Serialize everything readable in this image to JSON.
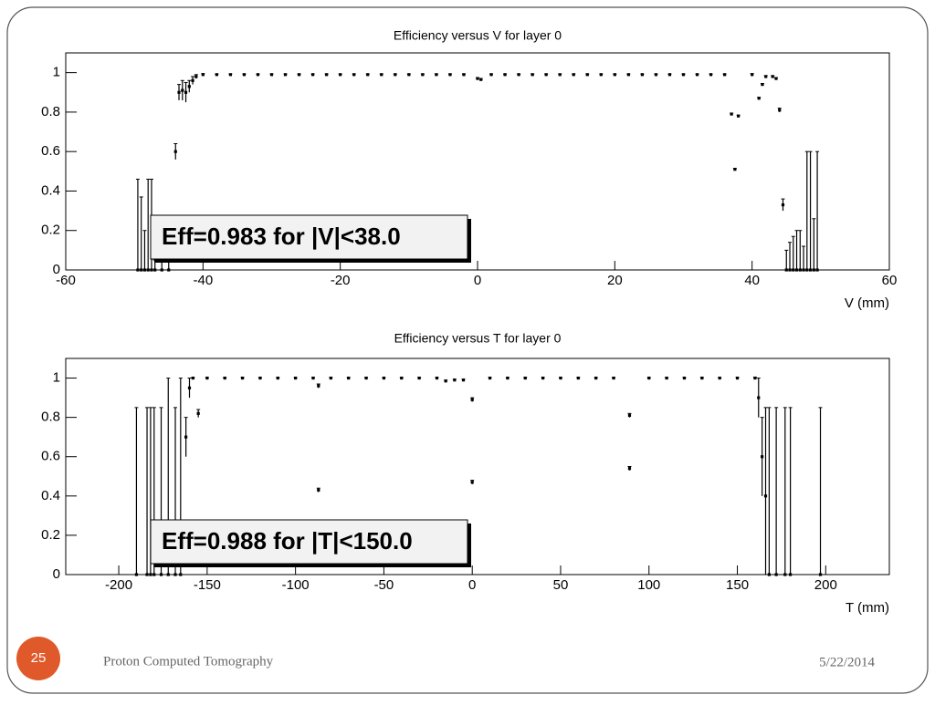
{
  "slide": {
    "page_number": "25",
    "footer": "Proton Computed Tomography",
    "date": "5/22/2014"
  },
  "chart_data": [
    {
      "type": "scatter",
      "title": "Efficiency versus V for layer 0",
      "x_label": "V (mm)",
      "annotation": "Eff=0.983 for |V|<38.0",
      "xlim": [
        -60,
        60
      ],
      "ylim": [
        0,
        1.1
      ],
      "xticks": [
        -60,
        -40,
        -20,
        0,
        20,
        40,
        60
      ],
      "yticks": [
        0,
        0.2,
        0.4,
        0.6,
        0.8,
        1
      ],
      "color": "#000000",
      "x": [
        -49.5,
        -49,
        -48.5,
        -48,
        -47.5,
        -47,
        -46,
        -45,
        -44,
        -43.5,
        -43,
        -42.5,
        -42,
        -41.5,
        -41,
        -40,
        -38,
        -36,
        -34,
        -32,
        -30,
        -28,
        -26,
        -24,
        -22,
        -20,
        -18,
        -16,
        -14,
        -12,
        -10,
        -8,
        -6,
        -4,
        -2,
        0,
        0.5,
        2,
        4,
        6,
        8,
        10,
        12,
        14,
        16,
        18,
        20,
        22,
        24,
        26,
        28,
        30,
        32,
        34,
        36,
        37,
        37.5,
        38,
        40,
        41,
        41.5,
        42,
        43,
        43.5,
        44,
        44.5,
        45,
        45.5,
        46,
        46.5,
        47,
        47.5,
        48,
        48.5,
        49,
        49.5
      ],
      "values": [
        0,
        0,
        0,
        0,
        0,
        0,
        0,
        0,
        0.6,
        0.9,
        0.91,
        0.9,
        0.93,
        0.96,
        0.98,
        0.99,
        0.99,
        0.99,
        0.99,
        0.99,
        0.99,
        0.99,
        0.99,
        0.99,
        0.99,
        0.99,
        0.99,
        0.99,
        0.99,
        0.99,
        0.99,
        0.99,
        0.99,
        0.99,
        0.99,
        0.97,
        0.965,
        0.99,
        0.99,
        0.99,
        0.99,
        0.99,
        0.99,
        0.99,
        0.99,
        0.99,
        0.99,
        0.99,
        0.99,
        0.99,
        0.99,
        0.99,
        0.99,
        0.99,
        0.99,
        0.79,
        0.51,
        0.78,
        0.99,
        0.87,
        0.94,
        0.98,
        0.98,
        0.97,
        0.81,
        0.33,
        0,
        0,
        0,
        0,
        0,
        0,
        0,
        0,
        0,
        0
      ],
      "errors": [
        0.46,
        0.37,
        0.2,
        0.46,
        0.46,
        0.05,
        0.05,
        0.05,
        0.04,
        0.04,
        0.05,
        0.05,
        0.03,
        0.02,
        0.01,
        0.005,
        0.003,
        0.003,
        0.003,
        0.003,
        0.003,
        0.003,
        0.003,
        0.003,
        0.003,
        0.003,
        0.003,
        0.003,
        0.003,
        0.003,
        0.003,
        0.003,
        0.003,
        0.003,
        0.003,
        0.005,
        0.005,
        0.003,
        0.003,
        0.003,
        0.003,
        0.003,
        0.003,
        0.003,
        0.003,
        0.003,
        0.003,
        0.003,
        0.003,
        0.003,
        0.003,
        0.003,
        0.003,
        0.003,
        0.003,
        0.005,
        0.005,
        0.005,
        0.005,
        0.005,
        0.005,
        0.005,
        0.005,
        0.005,
        0.01,
        0.03,
        0.1,
        0.14,
        0.17,
        0.2,
        0.2,
        0.12,
        0.6,
        0.6,
        0.26,
        0.6
      ]
    },
    {
      "type": "scatter",
      "title": "Efficiency versus T for layer 0",
      "x_label": "T (mm)",
      "annotation": "Eff=0.988 for |T|<150.0",
      "xlim": [
        -230,
        236
      ],
      "ylim": [
        0,
        1.1
      ],
      "xticks": [
        -200,
        -150,
        -100,
        -50,
        0,
        50,
        100,
        150,
        200
      ],
      "yticks": [
        0,
        0.2,
        0.4,
        0.6,
        0.8,
        1
      ],
      "color": "#000000",
      "x": [
        -190,
        -184,
        -182,
        -180,
        -176,
        -172,
        -168,
        -165,
        -162,
        -160,
        -158,
        -155,
        -150,
        -140,
        -130,
        -120,
        -110,
        -100,
        -90,
        -87,
        -87,
        -80,
        -70,
        -60,
        -50,
        -40,
        -30,
        -20,
        -15,
        -10,
        -5,
        0,
        0,
        10,
        20,
        30,
        40,
        50,
        60,
        70,
        80,
        89,
        89,
        100,
        110,
        120,
        130,
        140,
        150,
        160,
        162,
        164,
        166,
        168,
        172,
        177,
        180,
        197
      ],
      "values": [
        0,
        0,
        0,
        0,
        0,
        0,
        0,
        0,
        0.7,
        0.95,
        1,
        0.82,
        1,
        1,
        1,
        1,
        1,
        1,
        1,
        0.96,
        0.43,
        1,
        1,
        1,
        1,
        1,
        1,
        1,
        0.985,
        0.99,
        0.99,
        0.89,
        0.47,
        1,
        1,
        1,
        1,
        1,
        1,
        1,
        1,
        0.81,
        0.54,
        1,
        1,
        1,
        1,
        1,
        1,
        1,
        0.9,
        0.6,
        0.4,
        0,
        0,
        0,
        0,
        0
      ],
      "errors": [
        0.85,
        0.85,
        0.85,
        0.85,
        0.85,
        1,
        0.85,
        1,
        0.1,
        0.05,
        0.003,
        0.02,
        0.003,
        0.003,
        0.003,
        0.003,
        0.003,
        0.003,
        0.003,
        0.01,
        0.01,
        0.003,
        0.003,
        0.003,
        0.003,
        0.003,
        0.003,
        0.003,
        0.005,
        0.005,
        0.005,
        0.01,
        0.01,
        0.003,
        0.003,
        0.003,
        0.003,
        0.003,
        0.003,
        0.003,
        0.003,
        0.01,
        0.01,
        0.003,
        0.003,
        0.003,
        0.003,
        0.003,
        0.003,
        0.005,
        0.1,
        0.2,
        0.45,
        0.85,
        0.85,
        0.85,
        0.85,
        0.85
      ]
    }
  ]
}
